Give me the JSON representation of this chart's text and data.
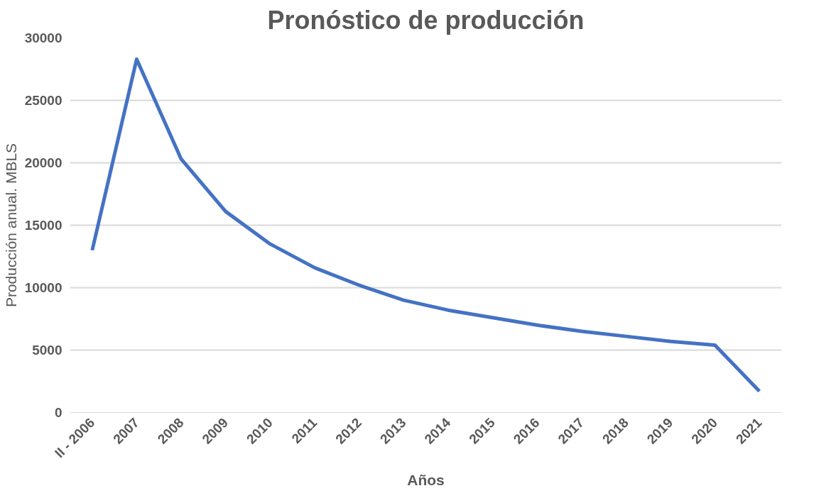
{
  "chart_data": {
    "type": "line",
    "title": "Pronóstico de producción",
    "xlabel": "Años",
    "ylabel": "Producción anual. MBLS",
    "categories": [
      "II - 2006",
      "2007",
      "2008",
      "2009",
      "2010",
      "2011",
      "2012",
      "2013",
      "2014",
      "2015",
      "2016",
      "2017",
      "2018",
      "2019",
      "2020",
      "2021"
    ],
    "series": [
      {
        "color": "#4472c4",
        "values": [
          13000,
          28300,
          20300,
          16100,
          13500,
          11600,
          10200,
          9000,
          8200,
          7600,
          7000,
          6500,
          6100,
          5700,
          5400,
          1700
        ]
      }
    ],
    "ylim": [
      0,
      30000
    ],
    "yticks": [
      0,
      5000,
      10000,
      15000,
      20000,
      25000,
      30000
    ],
    "grid": "y",
    "marker": "none",
    "line_style": "solid"
  }
}
